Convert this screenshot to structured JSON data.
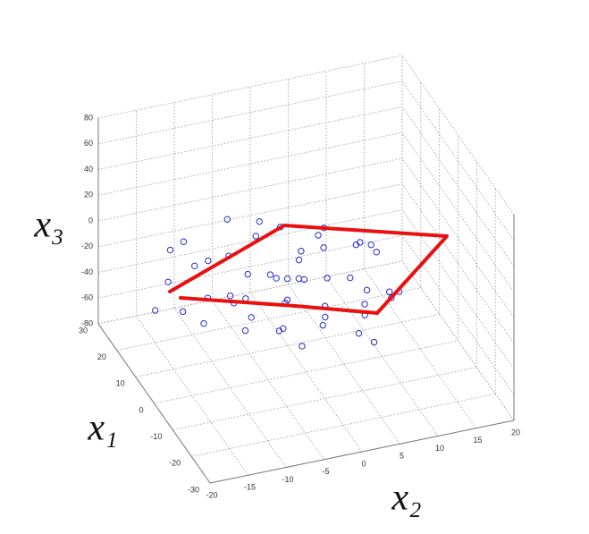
{
  "chart_data": {
    "type": "scatter3d",
    "xlabel": "x₁",
    "ylabel": "x₂",
    "zlabel": "x₃",
    "x1lim": [
      -30,
      30
    ],
    "x1ticks": [
      -30,
      -20,
      -10,
      0,
      10,
      20,
      30
    ],
    "x2lim": [
      -20,
      20
    ],
    "x2ticks": [
      -20,
      -15,
      -10,
      -5,
      0,
      5,
      10,
      15,
      20
    ],
    "x3lim": [
      -80,
      80
    ],
    "x3ticks": [
      -80,
      -60,
      -40,
      -20,
      0,
      20,
      40,
      60,
      80
    ],
    "grid": true,
    "color": "#2a2ad0",
    "points": {
      "x1": [
        20,
        15,
        10,
        5,
        0,
        -5,
        12,
        8,
        3,
        -2,
        -7,
        22,
        18,
        14,
        24,
        17,
        6,
        0,
        -4,
        -9,
        -12,
        26,
        21,
        11,
        4,
        9,
        -1,
        16,
        2,
        7,
        13,
        19,
        -3,
        10,
        23,
        5,
        -6,
        1,
        12,
        8,
        6,
        -8,
        15,
        27,
        3,
        -10,
        20,
        9,
        28,
        -10,
        25,
        -2
      ],
      "x2": [
        -8,
        -4,
        0,
        4,
        8,
        10,
        -10,
        -6,
        -2,
        2,
        6,
        2,
        6,
        10,
        -12,
        -14,
        -12,
        -8,
        -4,
        0,
        4,
        -4,
        -1,
        5,
        -9,
        8,
        12,
        0,
        3,
        -3,
        -7,
        4,
        7,
        11,
        8,
        -15,
        -2,
        0,
        2,
        1,
        -1,
        9,
        -11,
        0,
        10,
        -6,
        12,
        -5,
        -13,
        6.5,
        -10,
        -10
      ],
      "x3": [
        -25,
        -30,
        -28,
        -22,
        -26,
        -24,
        -35,
        -32,
        -30,
        -27,
        -20,
        -15,
        -18,
        -22,
        -20,
        -28,
        -40,
        -38,
        -33,
        -25,
        -30,
        -10,
        -5,
        -12,
        -18,
        -35,
        -30,
        -40,
        -45,
        -15,
        -8,
        -30,
        -38,
        -15,
        -25,
        -25,
        -45,
        -10,
        -20,
        -25,
        -35,
        -12,
        -15,
        -30,
        -5,
        -20,
        -35,
        -50,
        -74,
        -44,
        -18,
        -10
      ]
    }
  }
}
